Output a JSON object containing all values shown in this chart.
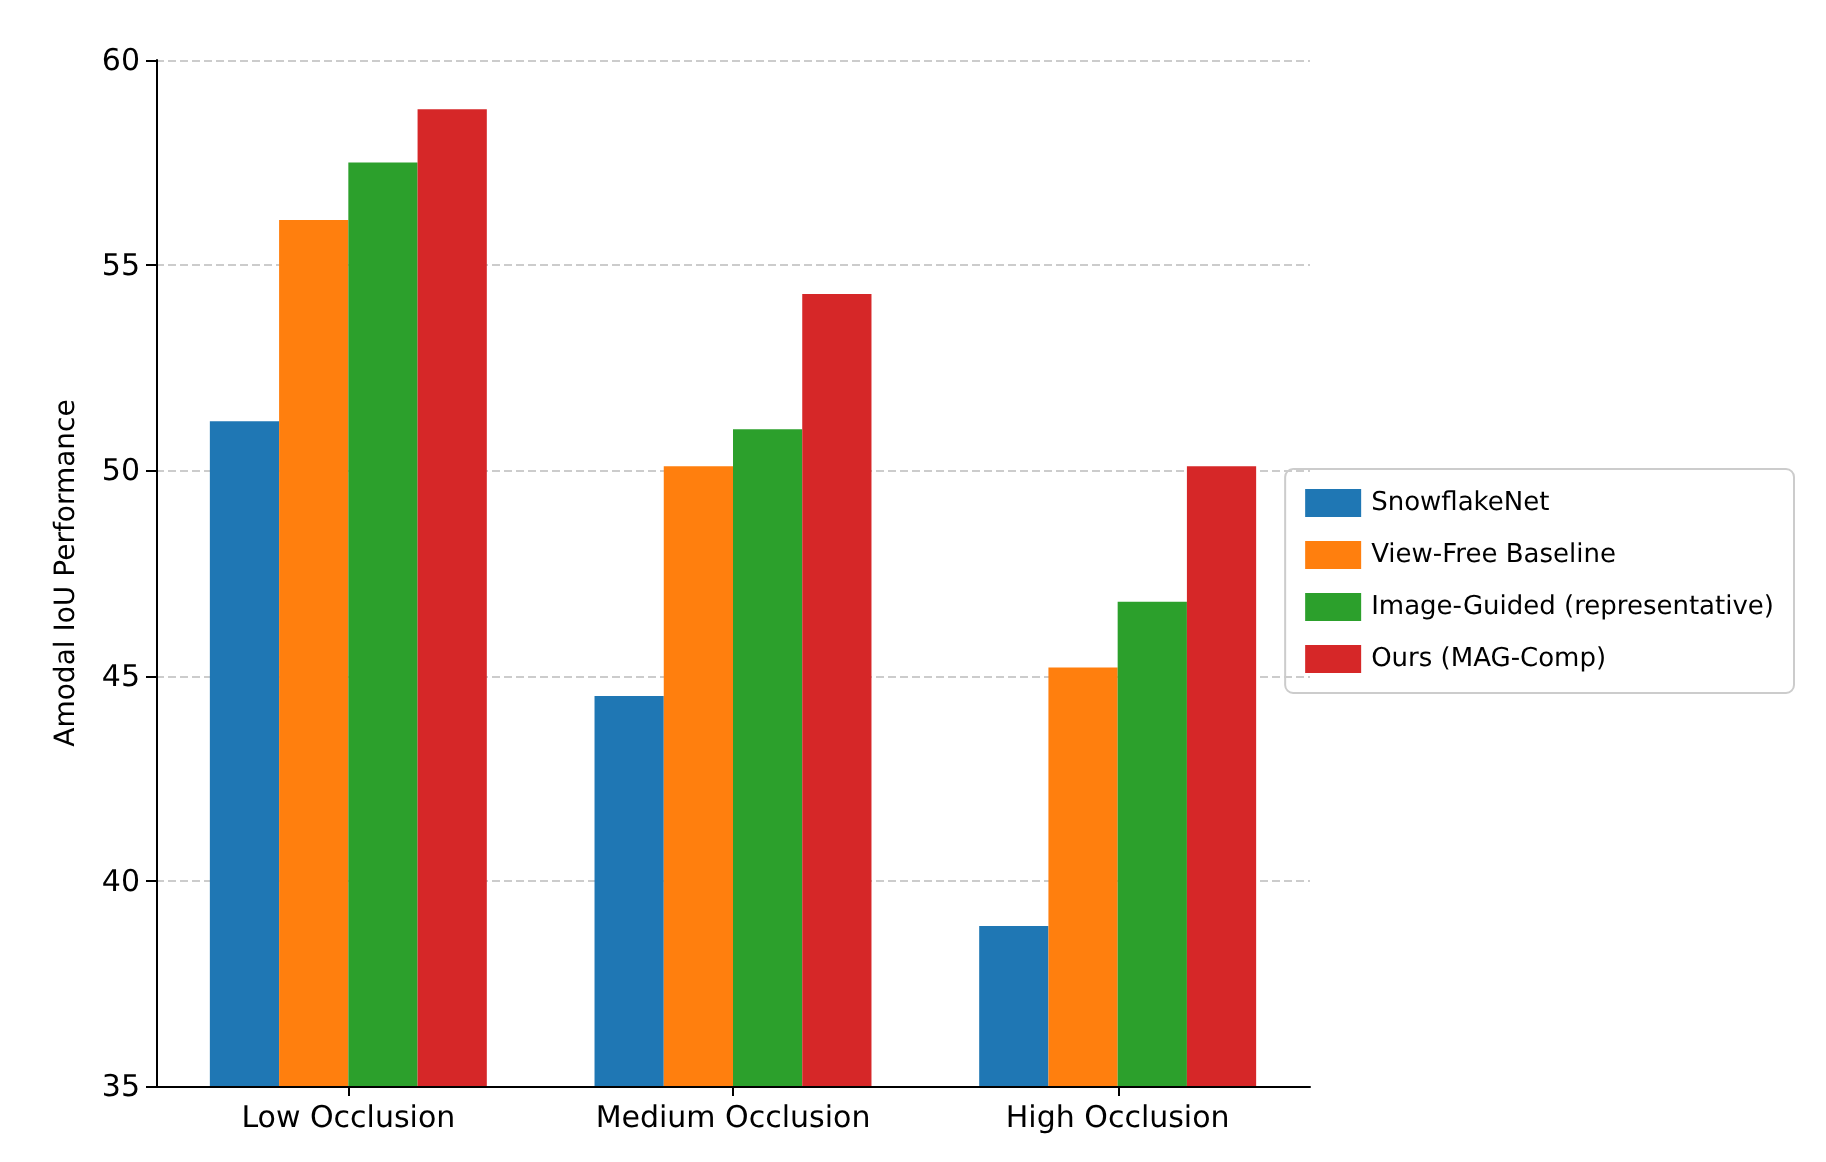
{
  "chart_data": {
    "type": "bar",
    "ylabel": "Amodal IoU Performance",
    "categories": [
      "Low Occlusion",
      "Medium Occlusion",
      "High Occlusion"
    ],
    "series": [
      {
        "name": "SnowflakeNet",
        "color": "#1f77b4",
        "values": [
          51.2,
          44.5,
          38.9
        ]
      },
      {
        "name": "View-Free Baseline",
        "color": "#ff7f0e",
        "values": [
          56.1,
          50.1,
          45.2
        ]
      },
      {
        "name": "Image-Guided (representative)",
        "color": "#2ca02c",
        "values": [
          57.5,
          51.0,
          46.8
        ]
      },
      {
        "name": "Ours (MAG-Comp)",
        "color": "#d62728",
        "values": [
          58.8,
          54.3,
          50.1
        ]
      }
    ],
    "ylim": [
      35,
      60
    ],
    "yticks": [
      35,
      40,
      45,
      50,
      55,
      60
    ],
    "grid": "y",
    "legend": "right"
  }
}
